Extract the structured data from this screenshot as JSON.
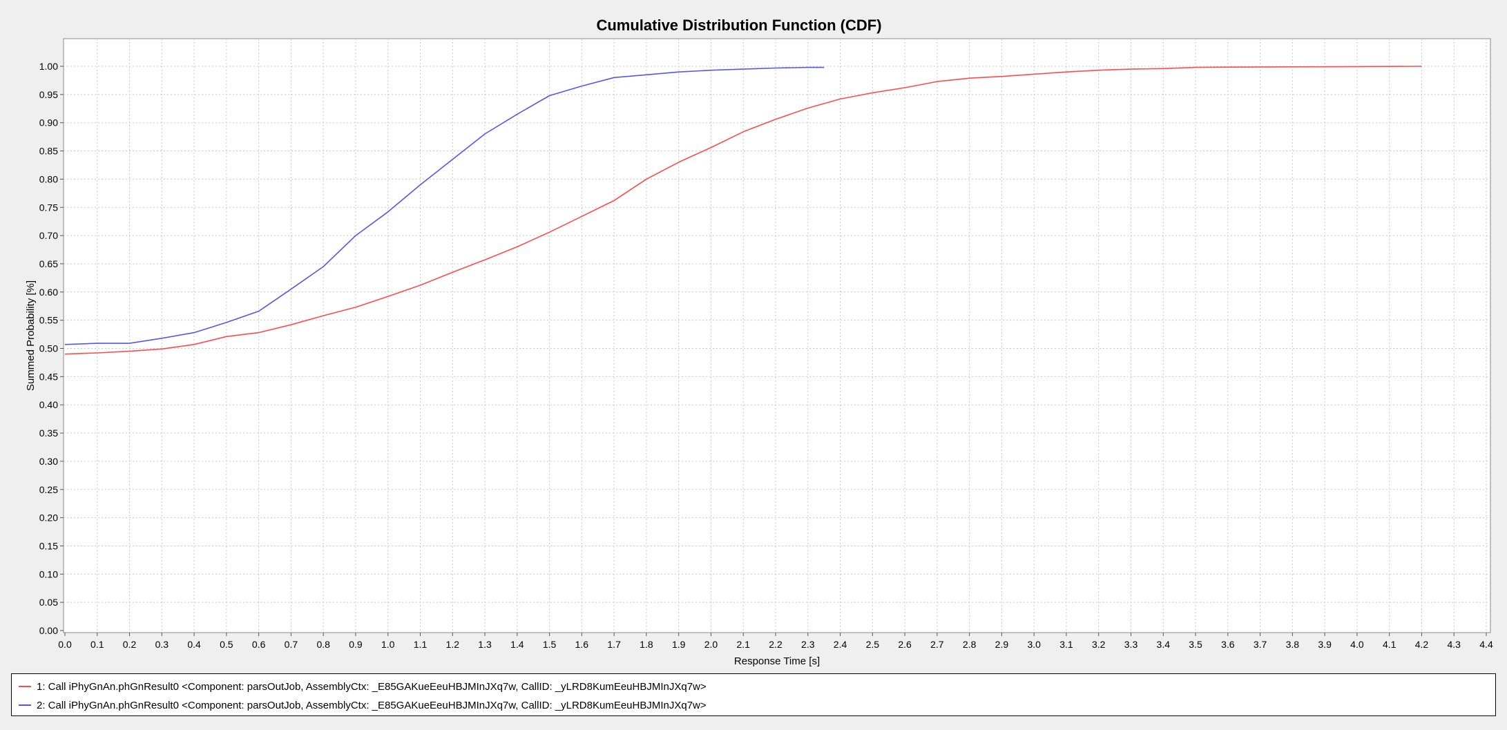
{
  "chart_data": {
    "type": "line",
    "title": "Cumulative Distribution Function (CDF)",
    "xlabel": "Response Time [s]",
    "ylabel": "Summed Probability [%]",
    "xlim": [
      0.0,
      4.4
    ],
    "ylim": [
      0.0,
      1.05
    ],
    "x_ticks": [
      "0.0",
      "0.1",
      "0.2",
      "0.3",
      "0.4",
      "0.5",
      "0.6",
      "0.7",
      "0.8",
      "0.9",
      "1.0",
      "1.1",
      "1.2",
      "1.3",
      "1.4",
      "1.5",
      "1.6",
      "1.7",
      "1.8",
      "1.9",
      "2.0",
      "2.1",
      "2.2",
      "2.3",
      "2.4",
      "2.5",
      "2.6",
      "2.7",
      "2.8",
      "2.9",
      "3.0",
      "3.1",
      "3.2",
      "3.3",
      "3.4",
      "3.5",
      "3.6",
      "3.7",
      "3.8",
      "3.9",
      "4.0",
      "4.1",
      "4.2",
      "4.3",
      "4.4"
    ],
    "y_ticks": [
      "0.00",
      "0.05",
      "0.10",
      "0.15",
      "0.20",
      "0.25",
      "0.30",
      "0.35",
      "0.40",
      "0.45",
      "0.50",
      "0.55",
      "0.60",
      "0.65",
      "0.70",
      "0.75",
      "0.80",
      "0.85",
      "0.90",
      "0.95",
      "1.00"
    ],
    "grid": true,
    "legend_position": "bottom",
    "series": [
      {
        "name": "1: Call iPhyGnAn.phGnResult0 <Component: parsOutJob, AssemblyCtx: _E85GAKueEeuHBJMInJXq7w, CallID: _yLRD8KumEeuHBJMInJXq7w>",
        "color": "#ff4a4a",
        "x": [
          0.0,
          0.1,
          0.2,
          0.3,
          0.4,
          0.5,
          0.6,
          0.7,
          0.8,
          0.9,
          1.0,
          1.1,
          1.2,
          1.3,
          1.4,
          1.5,
          1.6,
          1.7,
          1.8,
          1.9,
          2.0,
          2.1,
          2.2,
          2.3,
          2.4,
          2.5,
          2.6,
          2.7,
          2.8,
          2.9,
          3.0,
          3.1,
          3.2,
          3.3,
          3.4,
          3.5,
          3.6,
          3.8,
          4.0,
          4.2
        ],
        "y": [
          0.49,
          0.492,
          0.495,
          0.499,
          0.507,
          0.521,
          0.528,
          0.542,
          0.558,
          0.573,
          0.592,
          0.612,
          0.635,
          0.657,
          0.68,
          0.706,
          0.734,
          0.762,
          0.8,
          0.83,
          0.856,
          0.884,
          0.906,
          0.926,
          0.942,
          0.953,
          0.962,
          0.973,
          0.979,
          0.982,
          0.986,
          0.99,
          0.993,
          0.995,
          0.996,
          0.998,
          0.9985,
          0.999,
          0.9995,
          1.0
        ]
      },
      {
        "name": "2: Call iPhyGnAn.phGnResult0 <Component: parsOutJob, AssemblyCtx: _E85GAKueEeuHBJMInJXq7w, CallID: _yLRD8KumEeuHBJMInJXq7w>",
        "color": "#5555ee",
        "x": [
          0.0,
          0.1,
          0.2,
          0.3,
          0.4,
          0.5,
          0.6,
          0.7,
          0.8,
          0.9,
          1.0,
          1.1,
          1.2,
          1.3,
          1.4,
          1.5,
          1.6,
          1.7,
          1.8,
          1.9,
          2.0,
          2.1,
          2.2,
          2.3,
          2.35
        ],
        "y": [
          0.507,
          0.509,
          0.509,
          0.518,
          0.528,
          0.546,
          0.566,
          0.605,
          0.645,
          0.7,
          0.742,
          0.79,
          0.835,
          0.88,
          0.915,
          0.948,
          0.965,
          0.98,
          0.985,
          0.99,
          0.993,
          0.995,
          0.997,
          0.998,
          0.998
        ]
      }
    ]
  }
}
